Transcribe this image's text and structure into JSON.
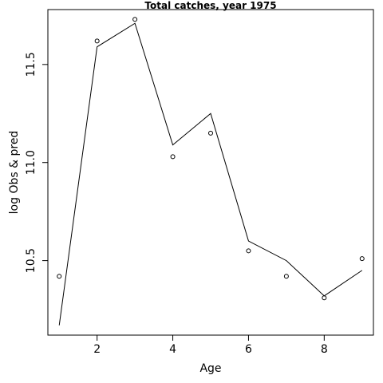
{
  "chart_data": {
    "type": "line",
    "title": "Total catches, year 1975",
    "xlabel": "Age",
    "ylabel": "log Obs & pred",
    "xlim": [
      0.7,
      9.3
    ],
    "ylim": [
      10.12,
      11.78
    ],
    "xticks": [
      2,
      4,
      6,
      8
    ],
    "yticks": [
      10.5,
      11.0,
      11.5
    ],
    "ytick_labels": [
      "10.5",
      "11.0",
      "11.5"
    ],
    "grid": false,
    "series": [
      {
        "style": "points",
        "x": [
          1,
          2,
          3,
          4,
          5,
          6,
          7,
          8,
          9
        ],
        "values": [
          10.42,
          11.62,
          11.73,
          11.03,
          11.15,
          10.55,
          10.42,
          10.31,
          10.51
        ]
      },
      {
        "style": "line",
        "x": [
          1,
          2,
          3,
          4,
          5,
          6,
          7,
          8,
          9
        ],
        "values": [
          10.17,
          11.59,
          11.71,
          11.09,
          11.25,
          10.6,
          10.5,
          10.32,
          10.45
        ]
      }
    ]
  }
}
